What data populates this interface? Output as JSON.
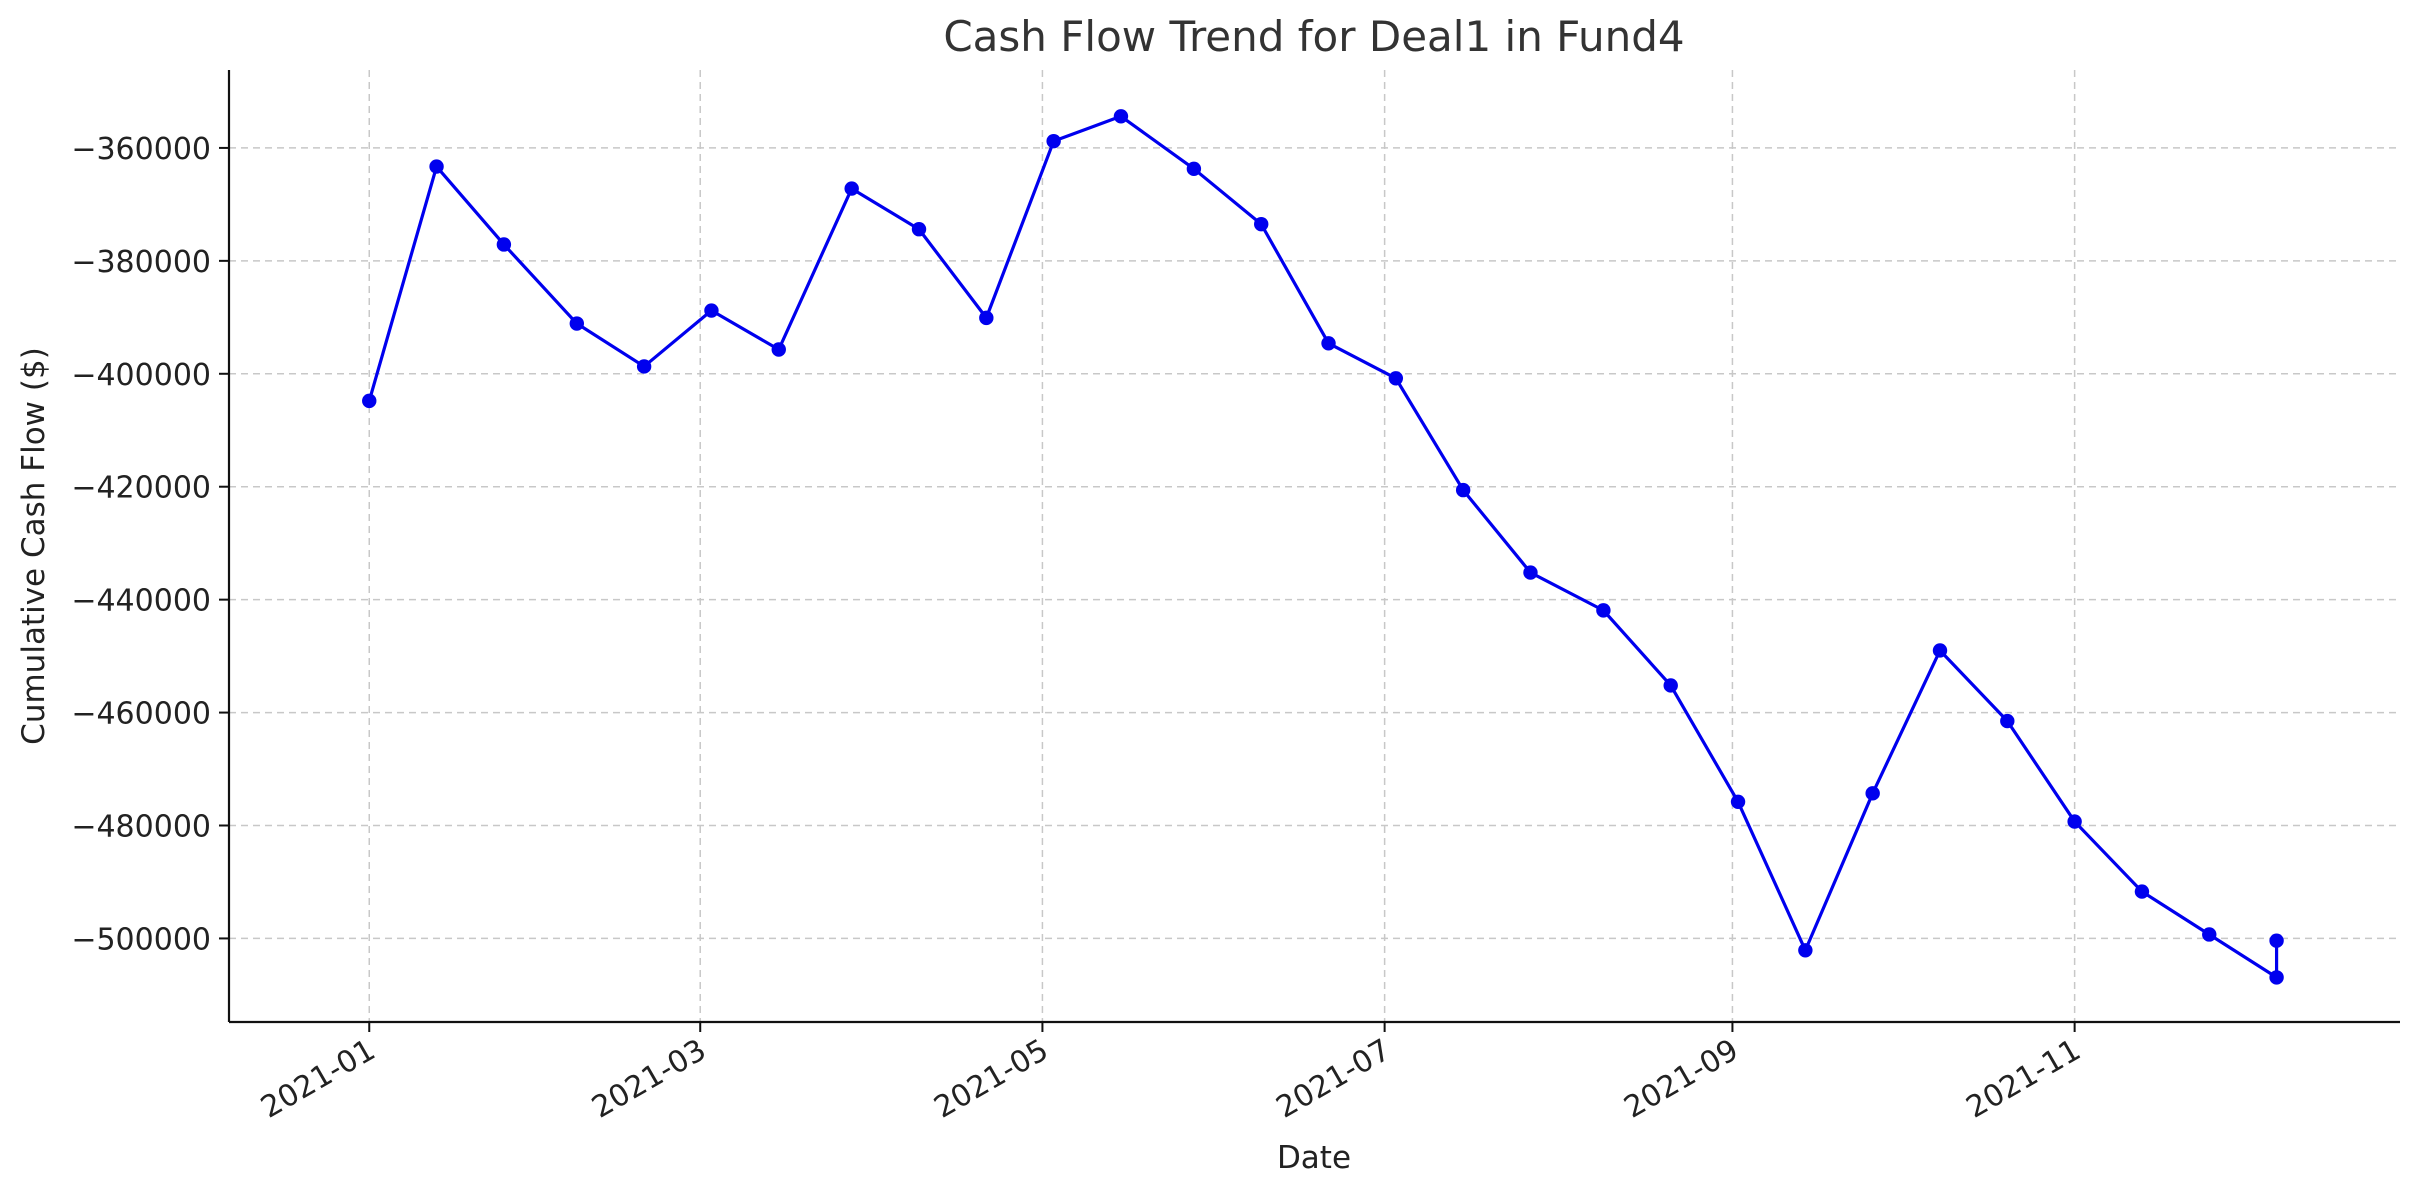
{
  "chart_data": {
    "type": "line",
    "title": "Cash Flow Trend for Deal1 in Fund4",
    "xlabel": "Date",
    "ylabel": "Cumulative Cash Flow ($)",
    "grid": true,
    "legend": "none",
    "ylim": [
      -514800,
      -346200
    ],
    "xlim": [
      "2020-12-07",
      "2021-12-29"
    ],
    "x_ticks": [
      "2021-01",
      "2021-03",
      "2021-05",
      "2021-07",
      "2021-09",
      "2021-11"
    ],
    "y_ticks": [
      -360000,
      -380000,
      -400000,
      -420000,
      -440000,
      -460000,
      -480000,
      -500000
    ],
    "series": [
      {
        "color": "#0000ee",
        "marker": "circle",
        "x": [
          "2021-01-01",
          "2021-01-13",
          "2021-01-25",
          "2021-02-07",
          "2021-02-19",
          "2021-03-03",
          "2021-03-15",
          "2021-03-28",
          "2021-04-09",
          "2021-04-21",
          "2021-05-03",
          "2021-05-15",
          "2021-05-28",
          "2021-06-09",
          "2021-06-21",
          "2021-07-03",
          "2021-07-15",
          "2021-07-27",
          "2021-08-09",
          "2021-08-21",
          "2021-09-02",
          "2021-09-14",
          "2021-09-26",
          "2021-10-08",
          "2021-10-20",
          "2021-11-01",
          "2021-11-13",
          "2021-11-25",
          "2021-12-07",
          "2021-12-07"
        ],
        "values": [
          -404800,
          -363300,
          -377100,
          -391100,
          -398700,
          -388800,
          -395700,
          -367200,
          -374400,
          -390100,
          -358800,
          -354400,
          -363700,
          -373500,
          -394600,
          -400800,
          -420600,
          -435200,
          -441900,
          -455200,
          -475800,
          -502100,
          -474300,
          -449000,
          -461500,
          -479300,
          -491700,
          -499300,
          -506900,
          -500400
        ]
      }
    ]
  }
}
